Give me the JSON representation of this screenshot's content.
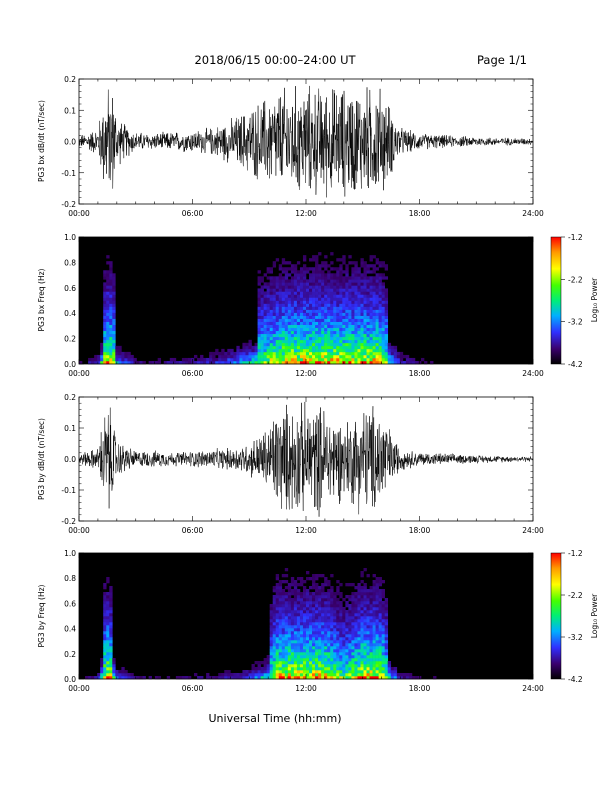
{
  "header": {
    "date_range": "2018/06/15  00:00–24:00 UT",
    "page": "Page 1/1"
  },
  "x_axis": {
    "label": "Universal Time (hh:mm)",
    "ticks": [
      "00:00",
      "06:00",
      "12:00",
      "18:00",
      "24:00"
    ],
    "range_hours": [
      0,
      24
    ]
  },
  "colorbar": {
    "label": "Log₁₀ Power",
    "ticks": [
      "-1.2",
      "-2.2",
      "-3.2",
      "-4.2"
    ],
    "range": [
      -4.2,
      -1.2
    ]
  },
  "chart_data": [
    {
      "type": "line",
      "ylabel": "PG3 bx dB/dt (nT/sec)",
      "ylim": [
        -0.2,
        0.2
      ],
      "yticks": [
        "0.2",
        "0.1",
        "0.0",
        "-0.1",
        "-0.2"
      ],
      "x": [
        0,
        1,
        1.4,
        1.6,
        1.8,
        2,
        2.5,
        3,
        4,
        5,
        6,
        7,
        8,
        9,
        10,
        11,
        12,
        13,
        14,
        15,
        16,
        16.5,
        17,
        18,
        20,
        22,
        24
      ],
      "amplitude": [
        0.02,
        0.05,
        0.2,
        0.2,
        0.2,
        0.09,
        0.06,
        0.035,
        0.03,
        0.035,
        0.04,
        0.05,
        0.08,
        0.12,
        0.17,
        0.2,
        0.2,
        0.2,
        0.2,
        0.2,
        0.2,
        0.12,
        0.05,
        0.03,
        0.02,
        0.015,
        0.012
      ]
    },
    {
      "type": "heatmap",
      "ylabel": "PG3 bx Freq (Hz)",
      "ylim": [
        0.0,
        1.0
      ],
      "yticks": [
        "1.0",
        "0.8",
        "0.6",
        "0.4",
        "0.2",
        "0.0"
      ],
      "colorbar_label": "Log₁₀ Power",
      "color_range": [
        -4.2,
        -1.2
      ]
    },
    {
      "type": "line",
      "ylabel": "PG3 by dB/dt (nT/sec)",
      "ylim": [
        -0.2,
        0.2
      ],
      "yticks": [
        "0.2",
        "0.1",
        "0.0",
        "-0.1",
        "-0.2"
      ],
      "x": [
        0,
        1,
        1.4,
        1.6,
        1.8,
        2,
        2.5,
        3,
        4,
        5,
        6,
        7,
        8,
        9,
        10,
        10.5,
        11,
        12,
        13,
        14,
        15,
        16,
        16.5,
        17,
        18,
        20,
        22,
        24
      ],
      "amplitude": [
        0.02,
        0.04,
        0.2,
        0.2,
        0.15,
        0.07,
        0.05,
        0.03,
        0.03,
        0.025,
        0.03,
        0.035,
        0.04,
        0.06,
        0.12,
        0.2,
        0.2,
        0.2,
        0.2,
        0.14,
        0.2,
        0.2,
        0.1,
        0.04,
        0.025,
        0.018,
        0.012,
        0.01
      ]
    },
    {
      "type": "heatmap",
      "ylabel": "PG3 by Freq (Hz)",
      "ylim": [
        0.0,
        1.0
      ],
      "yticks": [
        "1.0",
        "0.8",
        "0.6",
        "0.4",
        "0.2",
        "0.0"
      ],
      "colorbar_label": "Log₁₀ Power",
      "color_range": [
        -4.2,
        -1.2
      ]
    }
  ]
}
